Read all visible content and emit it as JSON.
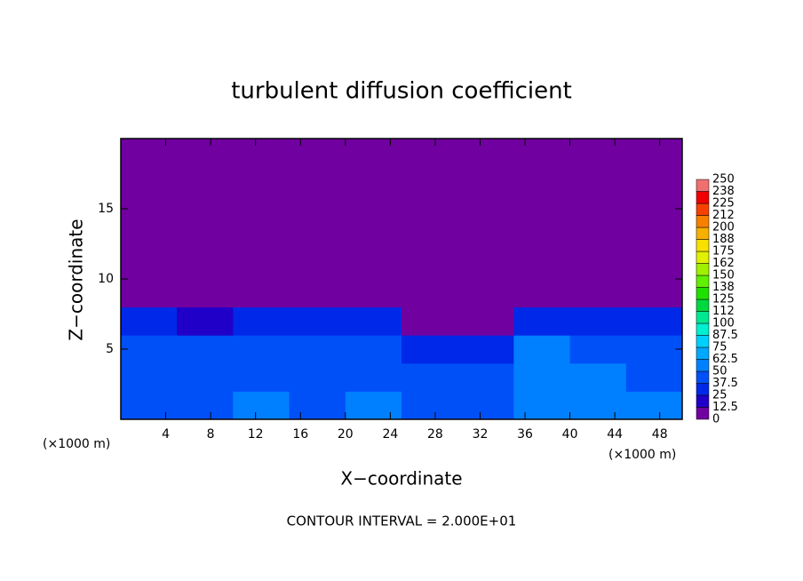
{
  "chart_data": {
    "type": "heatmap",
    "title": "turbulent diffusion coefficient",
    "x_label": "X−coordinate",
    "y_label": "Z−coordinate",
    "x_unit_left": "(×1000 m)",
    "x_unit_right": "(×1000 m)",
    "footnote": "CONTOUR INTERVAL = 2.000E+01",
    "xlim": [
      0,
      50
    ],
    "ylim": [
      0,
      20
    ],
    "xticks": [
      4,
      8,
      12,
      16,
      20,
      24,
      28,
      32,
      36,
      40,
      44,
      48
    ],
    "yticks": [
      5,
      10,
      15
    ],
    "x_bins": [
      0,
      5,
      10,
      15,
      20,
      25,
      30,
      35,
      40,
      45,
      50
    ],
    "z_bins": [
      0,
      2,
      4,
      6,
      8,
      10,
      20
    ],
    "values": [
      [
        40,
        45,
        50,
        40,
        50,
        40,
        45,
        60,
        55,
        60
      ],
      [
        45,
        40,
        45,
        40,
        45,
        40,
        40,
        55,
        60,
        45
      ],
      [
        40,
        40,
        40,
        45,
        40,
        35,
        35,
        50,
        45,
        40
      ],
      [
        25,
        20,
        30,
        25,
        25,
        5,
        5,
        35,
        30,
        30
      ],
      [
        0,
        0,
        0,
        0,
        0,
        0,
        0,
        0,
        0,
        0
      ],
      [
        0,
        0,
        0,
        0,
        0,
        0,
        0,
        0,
        0,
        0
      ]
    ],
    "colorbar": {
      "levels": [
        0,
        12.5,
        25,
        37.5,
        50,
        62.5,
        75,
        87.5,
        100,
        {
          "value": 112.5,
          "label": "112"
        },
        125,
        {
          "value": 137.5,
          "label": "138"
        },
        150,
        {
          "value": 162.5,
          "label": "162"
        },
        175,
        {
          "value": 187.5,
          "label": "188"
        },
        200,
        {
          "value": 212.5,
          "label": "212"
        },
        225,
        {
          "value": 237.5,
          "label": "238"
        },
        250
      ],
      "colors": [
        "#7000a0",
        "#2000c8",
        "#0028e8",
        "#0050f8",
        "#0080ff",
        "#00a8ff",
        "#00d0ff",
        "#00f0d0",
        "#00e890",
        "#00d840",
        "#20e000",
        "#60f000",
        "#a0f000",
        "#e0f000",
        "#f8e000",
        "#f8b000",
        "#f88000",
        "#f84000",
        "#f00000",
        "#f07070"
      ]
    }
  }
}
